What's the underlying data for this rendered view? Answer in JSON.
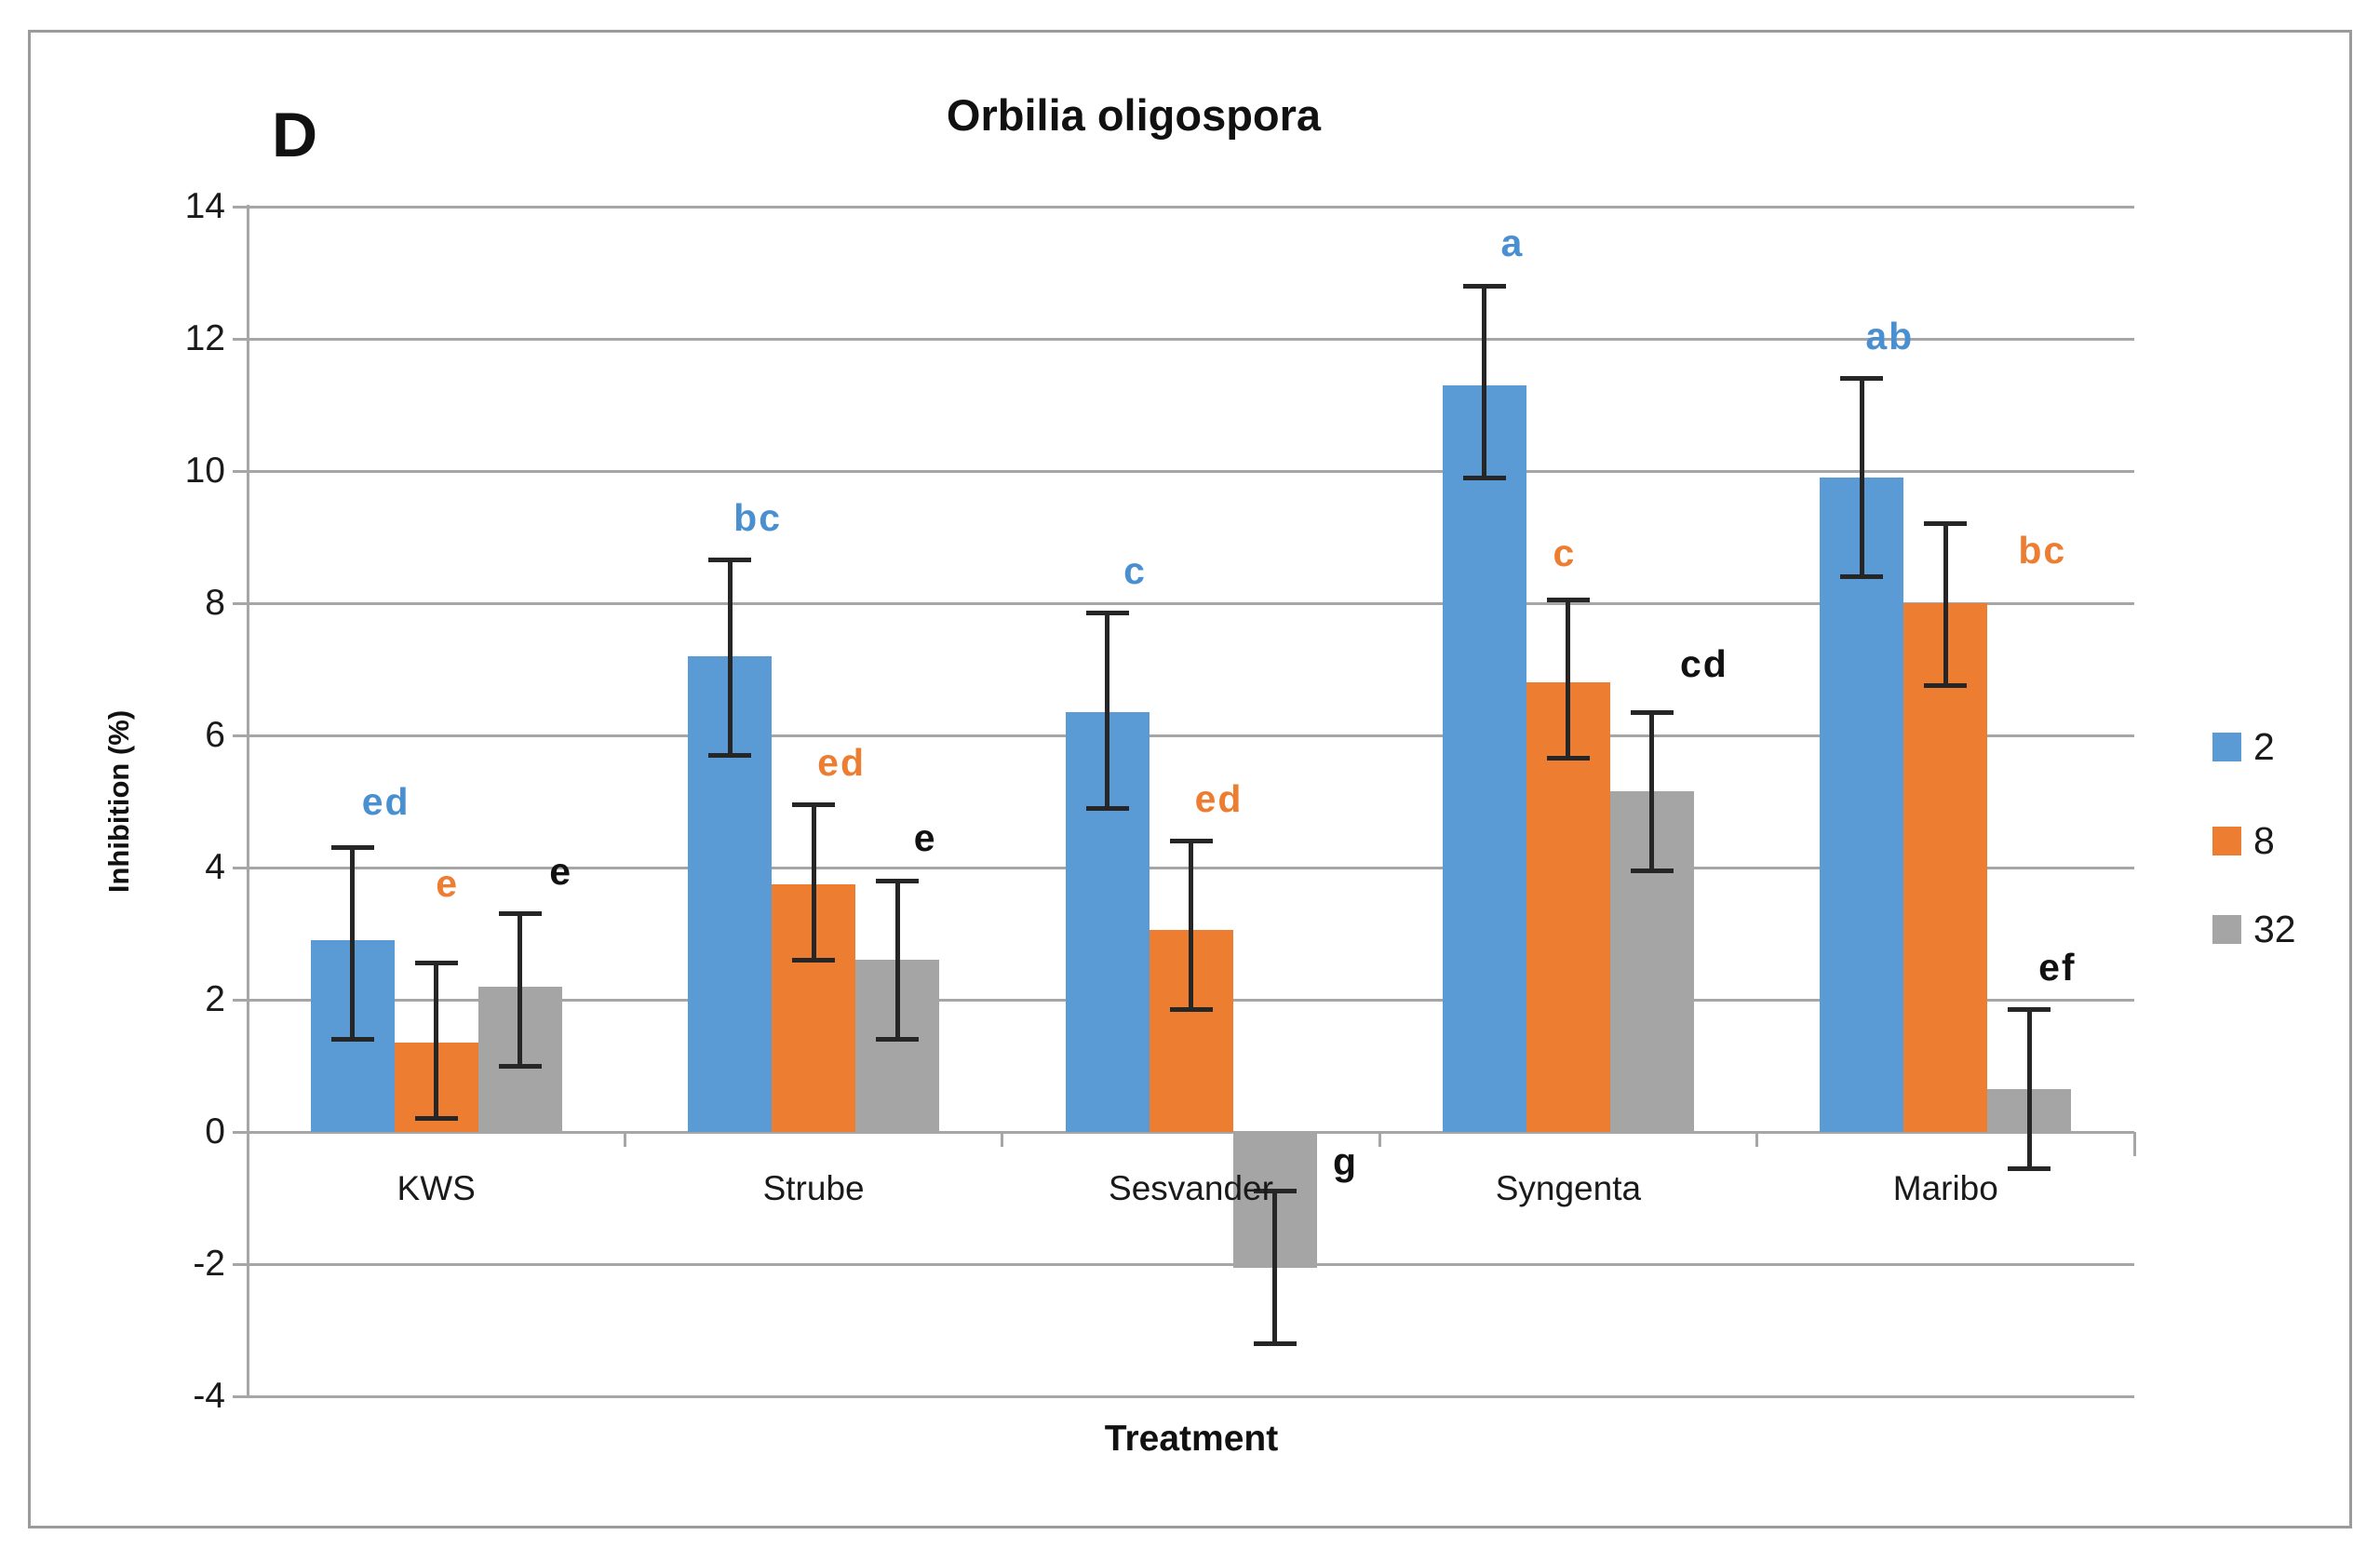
{
  "figure": {
    "panel_label": "D"
  },
  "chart_data": {
    "type": "bar",
    "title": "Orbilia oligospora",
    "xlabel": "Treatment",
    "ylabel": "Inhibition (%)",
    "ylim": [
      -4,
      14
    ],
    "yticks": [
      14,
      12,
      10,
      8,
      6,
      4,
      2,
      0,
      -2,
      -4
    ],
    "grid": true,
    "legend_position": "right",
    "categories": [
      "KWS",
      "Strube",
      "Sesvander",
      "Syngenta",
      "Maribo"
    ],
    "series": [
      {
        "name": "2",
        "color": "#5B9BD5",
        "letter_color": "#4A90D0",
        "values": [
          2.9,
          7.2,
          6.35,
          11.3,
          9.9
        ],
        "error_low": [
          1.4,
          5.7,
          4.9,
          9.9,
          8.4
        ],
        "error_high": [
          4.3,
          8.65,
          7.85,
          12.8,
          11.4
        ],
        "sig_letters": [
          "ed",
          "bc",
          "c",
          "a",
          "ab"
        ]
      },
      {
        "name": "8",
        "color": "#ED7D31",
        "letter_color": "#ED7D31",
        "values": [
          1.35,
          3.75,
          3.05,
          6.8,
          8.0
        ],
        "error_low": [
          0.2,
          2.6,
          1.85,
          5.65,
          6.75
        ],
        "error_high": [
          2.55,
          4.95,
          4.4,
          8.05,
          9.2
        ],
        "sig_letters": [
          "e",
          "ed",
          "ed",
          "c",
          "bc"
        ]
      },
      {
        "name": "32",
        "color": "#A5A5A5",
        "letter_color": "#111111",
        "values": [
          2.2,
          2.6,
          -2.05,
          5.15,
          0.65
        ],
        "error_low": [
          1.0,
          1.4,
          -3.2,
          3.95,
          -0.55
        ],
        "error_high": [
          3.3,
          3.8,
          -0.9,
          6.35,
          1.85
        ],
        "sig_letters": [
          "e",
          "e",
          "g",
          "cd",
          "ef"
        ]
      }
    ]
  }
}
